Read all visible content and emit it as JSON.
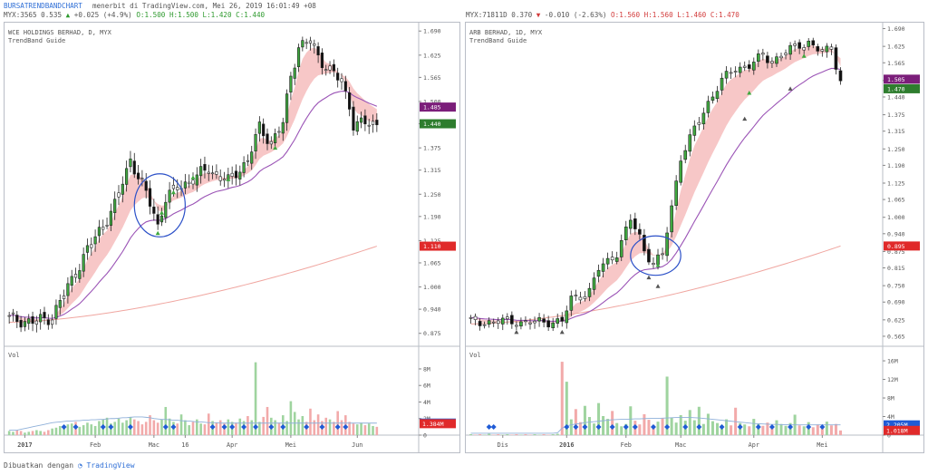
{
  "header": {
    "brand": "BURSATRENDBANDCHART",
    "published": "menerbit di TradingView.com, Mei 26, 2019 16:01:49 +08"
  },
  "footer": {
    "made_with": "Dibuatkan dengan",
    "tv": "TradingView"
  },
  "colors": {
    "up": "#3fa83f",
    "down": "#111111",
    "band": "#f7c4c4",
    "ema": "#9b54b6",
    "ma": "#f0a6a0",
    "circle": "#2b50c8",
    "vol_up": "#9fd49f",
    "vol_down": "#f2aaaa",
    "signal": "#1f5bd6"
  },
  "charts": [
    {
      "id": "wce",
      "quote": {
        "symbol": "MYX:3565",
        "last": "0.535",
        "change": "+0.025 (+4.9%)",
        "dir": "up",
        "o": "O:1.500",
        "h": "H:1.500",
        "l": "L:1.420",
        "c": "C:1.440"
      },
      "title": "WCE HOLDINGS BERHAD, D, MYX",
      "indicator": "TrendBand Guide",
      "vol_label": "Vol",
      "price_ticks": [
        "1.690",
        "1.625",
        "1.565",
        "1.500",
        "1.440",
        "1.375",
        "1.315",
        "1.250",
        "1.190",
        "1.125",
        "1.065",
        "1.000",
        "0.940",
        "0.875"
      ],
      "price_ticks_v": [
        1.69,
        1.625,
        1.565,
        1.5,
        1.44,
        1.375,
        1.315,
        1.25,
        1.19,
        1.125,
        1.065,
        1.0,
        0.94,
        0.875
      ],
      "price_range": [
        0.845,
        1.715
      ],
      "vol_ticks": [
        "8M",
        "6M",
        "4M",
        "2M",
        "0"
      ],
      "vol_ticks_v": [
        8,
        6,
        4,
        2,
        0
      ],
      "vol_range": [
        0,
        9.2
      ],
      "badges": [
        {
          "text": "1.485",
          "value": 1.485,
          "color": "#7b1e7a"
        },
        {
          "text": "1.440",
          "value": 1.44,
          "color": "#2e7d2e"
        },
        {
          "text": "1.110",
          "value": 1.11,
          "color": "#e02a2a"
        }
      ],
      "vol_badges": [
        {
          "text": "1.456M",
          "value": 1.456,
          "color": "#1f5bd6"
        },
        {
          "text": "1.384M",
          "value": 1.384,
          "color": "#e02a2a"
        }
      ],
      "time_labels": [
        {
          "text": "2017",
          "i": 4,
          "bold": true
        },
        {
          "text": "Feb",
          "i": 22
        },
        {
          "text": "Mac",
          "i": 37
        },
        {
          "text": "16",
          "i": 45
        },
        {
          "text": "Apr",
          "i": 57
        },
        {
          "text": "Mei",
          "i": 72
        },
        {
          "text": "Jun",
          "i": 89
        }
      ],
      "n": 95,
      "anchors": [
        [
          0,
          0.915
        ],
        [
          6,
          0.905
        ],
        [
          11,
          0.92
        ],
        [
          15,
          1.0
        ],
        [
          20,
          1.1
        ],
        [
          27,
          1.22
        ],
        [
          31,
          1.345
        ],
        [
          35,
          1.25
        ],
        [
          37,
          1.2
        ],
        [
          38,
          1.165
        ],
        [
          40,
          1.24
        ],
        [
          44,
          1.275
        ],
        [
          47,
          1.29
        ],
        [
          51,
          1.32
        ],
        [
          53,
          1.3
        ],
        [
          56,
          1.285
        ],
        [
          59,
          1.32
        ],
        [
          61,
          1.34
        ],
        [
          64,
          1.43
        ],
        [
          67,
          1.39
        ],
        [
          70,
          1.44
        ],
        [
          72,
          1.57
        ],
        [
          74,
          1.65
        ],
        [
          77,
          1.66
        ],
        [
          79,
          1.62
        ],
        [
          82,
          1.585
        ],
        [
          85,
          1.55
        ],
        [
          87,
          1.49
        ],
        [
          88,
          1.44
        ]
      ],
      "circle": {
        "i": 38.5,
        "p": 1.22,
        "rx": 6.5,
        "ry": 0.085
      },
      "arrows_up": [
        {
          "i": 38,
          "p": 1.145
        },
        {
          "i": 39,
          "p": 1.2
        },
        {
          "i": 42,
          "p": 1.255
        },
        {
          "i": 47,
          "p": 1.295
        },
        {
          "i": 56,
          "p": 1.29
        },
        {
          "i": 68,
          "p": 1.375
        }
      ],
      "signal_idx": [
        14,
        17,
        24,
        26,
        31,
        40,
        42,
        52,
        55,
        57,
        60,
        63,
        67,
        70,
        76,
        80,
        84,
        86
      ],
      "vol_bars": [
        0.5,
        0.4,
        0.6,
        0.5,
        0.3,
        0.4,
        0.5,
        0.6,
        0.5,
        0.4,
        0.6,
        0.8,
        0.9,
        1.1,
        1.2,
        1.3,
        1.4,
        1.6,
        1.0,
        1.2,
        1.5,
        1.3,
        1.1,
        1.7,
        1.9,
        2.1,
        1.4,
        1.6,
        2.0,
        1.5,
        1.8,
        2.2,
        1.9,
        1.7,
        1.3,
        1.6,
        2.4,
        1.8,
        1.5,
        1.9,
        3.4,
        2.0,
        1.6,
        1.4,
        2.5,
        1.8,
        1.2,
        1.6,
        1.9,
        1.4,
        1.3,
        2.6,
        1.7,
        1.5,
        1.8,
        1.4,
        1.9,
        1.6,
        1.5,
        2.0,
        1.7,
        2.3,
        1.8,
        8.8,
        1.6,
        2.2,
        3.4,
        2.1,
        1.8,
        1.5,
        2.4,
        1.7,
        4.1,
        2.8,
        1.9,
        2.3,
        1.6,
        3.2,
        1.8,
        2.5,
        1.7,
        2.1,
        1.9,
        1.6,
        2.9,
        1.8,
        2.4,
        1.6,
        1.4,
        1.3,
        1.5,
        1.2,
        1.4,
        1.1,
        1.0
      ],
      "vol_avg": [
        0.6,
        0.6,
        0.6,
        0.7,
        0.8,
        0.9,
        1.0,
        1.1,
        1.2,
        1.3,
        1.4,
        1.5,
        1.55,
        1.6,
        1.65,
        1.7,
        1.7,
        1.75,
        1.75,
        1.8,
        1.8,
        1.85,
        1.85,
        1.9,
        1.9,
        1.95,
        2.0,
        2.0,
        2.05,
        2.1,
        2.1,
        2.15,
        2.2,
        2.2,
        2.2,
        2.15,
        2.1,
        2.0,
        1.95,
        1.9,
        1.9,
        1.85,
        1.8,
        1.8,
        1.75,
        1.7,
        1.7,
        1.65,
        1.6,
        1.6,
        1.55,
        1.5,
        1.5,
        1.5,
        1.45,
        1.45,
        1.45,
        1.45,
        1.45,
        1.45,
        1.45,
        1.45,
        1.45,
        1.45,
        1.45,
        1.45,
        1.45,
        1.45,
        1.45,
        1.45,
        1.45,
        1.45,
        1.45,
        1.45,
        1.45,
        1.45,
        1.45,
        1.45,
        1.45,
        1.45,
        1.45,
        1.45,
        1.45,
        1.45,
        1.45,
        1.45,
        1.45,
        1.45,
        1.45,
        1.45,
        1.45,
        1.45,
        1.45,
        1.45,
        1.45
      ],
      "ma_start": 0.905,
      "ma_end": 1.11
    },
    {
      "id": "arb",
      "quote": {
        "symbol": "MYX:7181",
        "last": "1D 0.370",
        "change": "-0.010 (-2.63%)",
        "dir": "down",
        "o": "O:1.560",
        "h": "H:1.560",
        "l": "L:1.460",
        "c": "C:1.470"
      },
      "title": "ARB BERHAD, 1D, MYX",
      "indicator": "TrendBand Guide",
      "vol_label": "Vol",
      "price_ticks": [
        "1.690",
        "1.625",
        "1.565",
        "1.500",
        "1.440",
        "1.375",
        "1.315",
        "1.250",
        "1.190",
        "1.125",
        "1.065",
        "1.000",
        "0.940",
        "0.875",
        "0.815",
        "0.750",
        "0.690",
        "0.625",
        "0.565"
      ],
      "price_ticks_v": [
        1.69,
        1.625,
        1.565,
        1.5,
        1.44,
        1.375,
        1.315,
        1.25,
        1.19,
        1.125,
        1.065,
        1.0,
        0.94,
        0.875,
        0.815,
        0.75,
        0.69,
        0.625,
        0.565
      ],
      "price_range": [
        0.535,
        1.715
      ],
      "vol_ticks": [
        "16M",
        "12M",
        "8M",
        "4M",
        "0"
      ],
      "vol_ticks_v": [
        16,
        12,
        8,
        4,
        0
      ],
      "vol_range": [
        0,
        16.4
      ],
      "badges": [
        {
          "text": "1.505",
          "value": 1.505,
          "color": "#7b1e7a"
        },
        {
          "text": "1.470",
          "value": 1.47,
          "color": "#2e7d2e"
        },
        {
          "text": "0.895",
          "value": 0.895,
          "color": "#e02a2a"
        }
      ],
      "vol_badges": [
        {
          "text": "2.205M",
          "value": 2.205,
          "color": "#1f5bd6"
        },
        {
          "text": "1.018M",
          "value": 1.018,
          "color": "#e02a2a"
        }
      ],
      "time_labels": [
        {
          "text": "Dis",
          "i": 7
        },
        {
          "text": "2016",
          "i": 21,
          "bold": true
        },
        {
          "text": "Feb",
          "i": 34
        },
        {
          "text": "Mac",
          "i": 46
        },
        {
          "text": "Apr",
          "i": 62
        },
        {
          "text": "Mei",
          "i": 77
        }
      ],
      "n": 82,
      "anchors": [
        [
          0,
          0.615
        ],
        [
          8,
          0.62
        ],
        [
          12,
          0.615
        ],
        [
          20,
          0.62
        ],
        [
          22,
          0.7
        ],
        [
          26,
          0.73
        ],
        [
          28,
          0.81
        ],
        [
          32,
          0.87
        ],
        [
          35,
          0.99
        ],
        [
          37,
          0.93
        ],
        [
          38,
          0.88
        ],
        [
          40,
          0.83
        ],
        [
          42,
          0.86
        ],
        [
          44,
          1.04
        ],
        [
          46,
          1.22
        ],
        [
          49,
          1.32
        ],
        [
          52,
          1.42
        ],
        [
          55,
          1.5
        ],
        [
          58,
          1.545
        ],
        [
          61,
          1.555
        ],
        [
          64,
          1.59
        ],
        [
          66,
          1.57
        ],
        [
          69,
          1.605
        ],
        [
          72,
          1.63
        ],
        [
          74,
          1.64
        ],
        [
          77,
          1.6
        ],
        [
          79,
          1.62
        ],
        [
          81,
          1.5
        ]
      ],
      "circle": {
        "i": 40.5,
        "p": 0.86,
        "rx": 5.5,
        "ry": 0.072
      },
      "arrows_up": [
        {
          "i": 41,
          "p": 0.825
        },
        {
          "i": 61,
          "p": 1.455
        },
        {
          "i": 73,
          "p": 1.59
        }
      ],
      "arrows_down": [
        {
          "i": 10,
          "p": 0.58
        },
        {
          "i": 20,
          "p": 0.58
        },
        {
          "i": 39,
          "p": 0.78
        },
        {
          "i": 41,
          "p": 0.748
        },
        {
          "i": 60,
          "p": 1.36
        },
        {
          "i": 70,
          "p": 1.47
        }
      ],
      "signal_idx": [
        4,
        5,
        21,
        23,
        25,
        28,
        31,
        34,
        36,
        40,
        43,
        47,
        50,
        55,
        59,
        63,
        66,
        70,
        74,
        77
      ],
      "vol_bars": [
        0.2,
        0.1,
        0.2,
        0.1,
        0.3,
        0.1,
        0.2,
        0.1,
        0.2,
        0.1,
        0.2,
        0.1,
        0.2,
        0.1,
        0.2,
        0.1,
        0.2,
        0.1,
        0.2,
        0.3,
        15.8,
        11.5,
        3.4,
        5.6,
        2.8,
        6.3,
        3.9,
        2.5,
        6.9,
        4.1,
        3.5,
        5.2,
        2.6,
        1.9,
        2.4,
        6.2,
        3.1,
        2.3,
        4.5,
        3.3,
        2.2,
        2.9,
        3.6,
        12.6,
        3.8,
        2.7,
        4.3,
        3.1,
        5.4,
        3.2,
        6.1,
        2.4,
        4.6,
        3.0,
        2.6,
        2.2,
        3.4,
        2.1,
        5.9,
        2.6,
        2.3,
        1.9,
        3.5,
        2.4,
        2.0,
        2.7,
        1.8,
        3.2,
        2.4,
        2.0,
        2.6,
        4.4,
        2.1,
        1.9,
        2.8,
        1.7,
        2.3,
        1.6,
        2.9,
        2.1,
        2.4,
        1.0
      ],
      "vol_avg": [
        0.4,
        0.4,
        0.4,
        0.4,
        0.4,
        0.4,
        0.4,
        0.4,
        0.4,
        0.4,
        0.4,
        0.4,
        0.4,
        0.4,
        0.4,
        0.4,
        0.4,
        0.4,
        0.4,
        0.5,
        1.5,
        2.0,
        2.2,
        2.4,
        2.5,
        2.7,
        2.8,
        2.9,
        3.0,
        3.1,
        3.2,
        3.3,
        3.35,
        3.4,
        3.4,
        3.45,
        3.5,
        3.5,
        3.55,
        3.6,
        3.6,
        3.6,
        3.65,
        3.7,
        3.75,
        3.8,
        3.8,
        3.8,
        3.8,
        3.75,
        3.7,
        3.6,
        3.5,
        3.4,
        3.3,
        3.2,
        3.1,
        3.0,
        2.9,
        2.8,
        2.7,
        2.6,
        2.5,
        2.45,
        2.4,
        2.35,
        2.3,
        2.3,
        2.25,
        2.25,
        2.2,
        2.2,
        2.2,
        2.2,
        2.2,
        2.2,
        2.2,
        2.2,
        2.2,
        2.2,
        2.2,
        2.2
      ],
      "ma_start": 0.61,
      "ma_end": 0.895
    }
  ]
}
